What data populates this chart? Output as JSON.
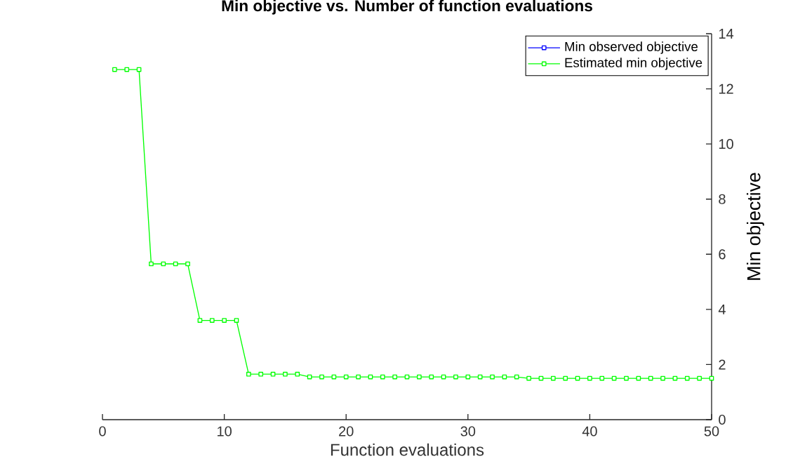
{
  "chart_data": {
    "type": "line",
    "title": "Min objective vs. Number of function evaluations",
    "xlabel": "Function evaluations",
    "ylabel": "Min objective",
    "x": [
      1,
      2,
      3,
      4,
      5,
      6,
      7,
      8,
      9,
      10,
      11,
      12,
      13,
      14,
      15,
      16,
      17,
      18,
      19,
      20,
      21,
      22,
      23,
      24,
      25,
      26,
      27,
      28,
      29,
      30,
      31,
      32,
      33,
      34,
      35,
      36,
      37,
      38,
      39,
      40,
      41,
      42,
      43,
      44,
      45,
      46,
      47,
      48,
      49,
      50
    ],
    "series": [
      {
        "name": "Min observed objective",
        "color": "#0000ff",
        "values": [
          null,
          null,
          null,
          null,
          null,
          null,
          null,
          null,
          null,
          null,
          null,
          null,
          null,
          null,
          null,
          null,
          null,
          null,
          null,
          null,
          null,
          null,
          null,
          null,
          null,
          null,
          null,
          null,
          null,
          null,
          null,
          null,
          null,
          null,
          null,
          null,
          null,
          null,
          null,
          null,
          null,
          null,
          null,
          null,
          null,
          null,
          null,
          null,
          null,
          null
        ]
      },
      {
        "name": "Estimated min objective",
        "color": "#00ff00",
        "values": [
          12.7,
          12.7,
          12.7,
          5.65,
          5.65,
          5.65,
          5.65,
          3.6,
          3.6,
          3.6,
          3.6,
          1.65,
          1.65,
          1.65,
          1.65,
          1.65,
          1.55,
          1.55,
          1.55,
          1.55,
          1.55,
          1.55,
          1.55,
          1.55,
          1.55,
          1.55,
          1.55,
          1.55,
          1.55,
          1.55,
          1.55,
          1.55,
          1.55,
          1.55,
          1.5,
          1.5,
          1.5,
          1.5,
          1.5,
          1.5,
          1.5,
          1.5,
          1.5,
          1.5,
          1.5,
          1.5,
          1.5,
          1.5,
          1.5,
          1.5
        ]
      }
    ],
    "xlim": [
      0,
      50
    ],
    "xticks": [
      0,
      10,
      20,
      30,
      40,
      50
    ],
    "ylim": [
      0,
      14
    ],
    "yticks": [
      0,
      2,
      4,
      6,
      8,
      10,
      12,
      14
    ],
    "grid": false,
    "legend": "top right",
    "marker": "square",
    "line_style": "solid"
  }
}
